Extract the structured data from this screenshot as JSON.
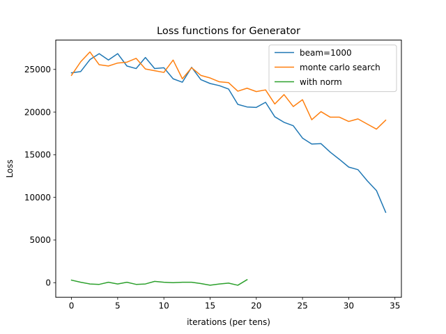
{
  "chart_data": {
    "type": "line",
    "title": "Loss functions for Generator",
    "xlabel": "iterations (per tens)",
    "ylabel": "Loss",
    "xlim": [
      -1.7,
      35.7
    ],
    "ylim": [
      -1710,
      28440
    ],
    "xticks": [
      0,
      5,
      10,
      15,
      20,
      25,
      30,
      35
    ],
    "yticks": [
      0,
      5000,
      10000,
      15000,
      20000,
      25000
    ],
    "grid": false,
    "legend_position": "upper right",
    "series": [
      {
        "name": "beam=1000",
        "color": "#1f77b4",
        "x": [
          0,
          1,
          2,
          3,
          4,
          5,
          6,
          7,
          8,
          9,
          10,
          11,
          12,
          13,
          14,
          15,
          16,
          17,
          18,
          19,
          20,
          21,
          22,
          23,
          24,
          25,
          26,
          27,
          28,
          29,
          30,
          31,
          32,
          33,
          34
        ],
        "values": [
          24600,
          24750,
          26150,
          26850,
          26100,
          26850,
          25400,
          25100,
          26400,
          25100,
          25200,
          23900,
          23500,
          25250,
          23800,
          23350,
          23100,
          22700,
          20900,
          20600,
          20550,
          21150,
          19450,
          18800,
          18400,
          16950,
          16250,
          16300,
          15300,
          14450,
          13550,
          13250,
          11950,
          10800,
          8250
        ]
      },
      {
        "name": "monte carlo search",
        "color": "#ff7f0e",
        "x": [
          0,
          1,
          2,
          3,
          4,
          5,
          6,
          7,
          8,
          9,
          10,
          11,
          12,
          13,
          14,
          15,
          16,
          17,
          18,
          19,
          20,
          21,
          22,
          23,
          24,
          25,
          26,
          27,
          28,
          29,
          30,
          31,
          32,
          33,
          34
        ],
        "values": [
          24300,
          25900,
          27050,
          25550,
          25400,
          25750,
          25850,
          26300,
          25050,
          24850,
          24650,
          26100,
          23900,
          25200,
          24300,
          24000,
          23550,
          23450,
          22450,
          22800,
          22400,
          22600,
          20950,
          22050,
          20650,
          21450,
          19100,
          20050,
          19400,
          19400,
          18900,
          19200,
          18600,
          18000,
          19050
        ]
      },
      {
        "name": "with norm",
        "color": "#2ca02c",
        "x": [
          0,
          1,
          2,
          3,
          4,
          5,
          6,
          7,
          8,
          9,
          10,
          11,
          12,
          13,
          14,
          15,
          16,
          17,
          18,
          19
        ],
        "values": [
          300,
          50,
          -150,
          -200,
          50,
          -150,
          50,
          -200,
          -150,
          150,
          50,
          0,
          50,
          50,
          -100,
          -300,
          -150,
          -50,
          -300,
          350
        ]
      }
    ]
  }
}
